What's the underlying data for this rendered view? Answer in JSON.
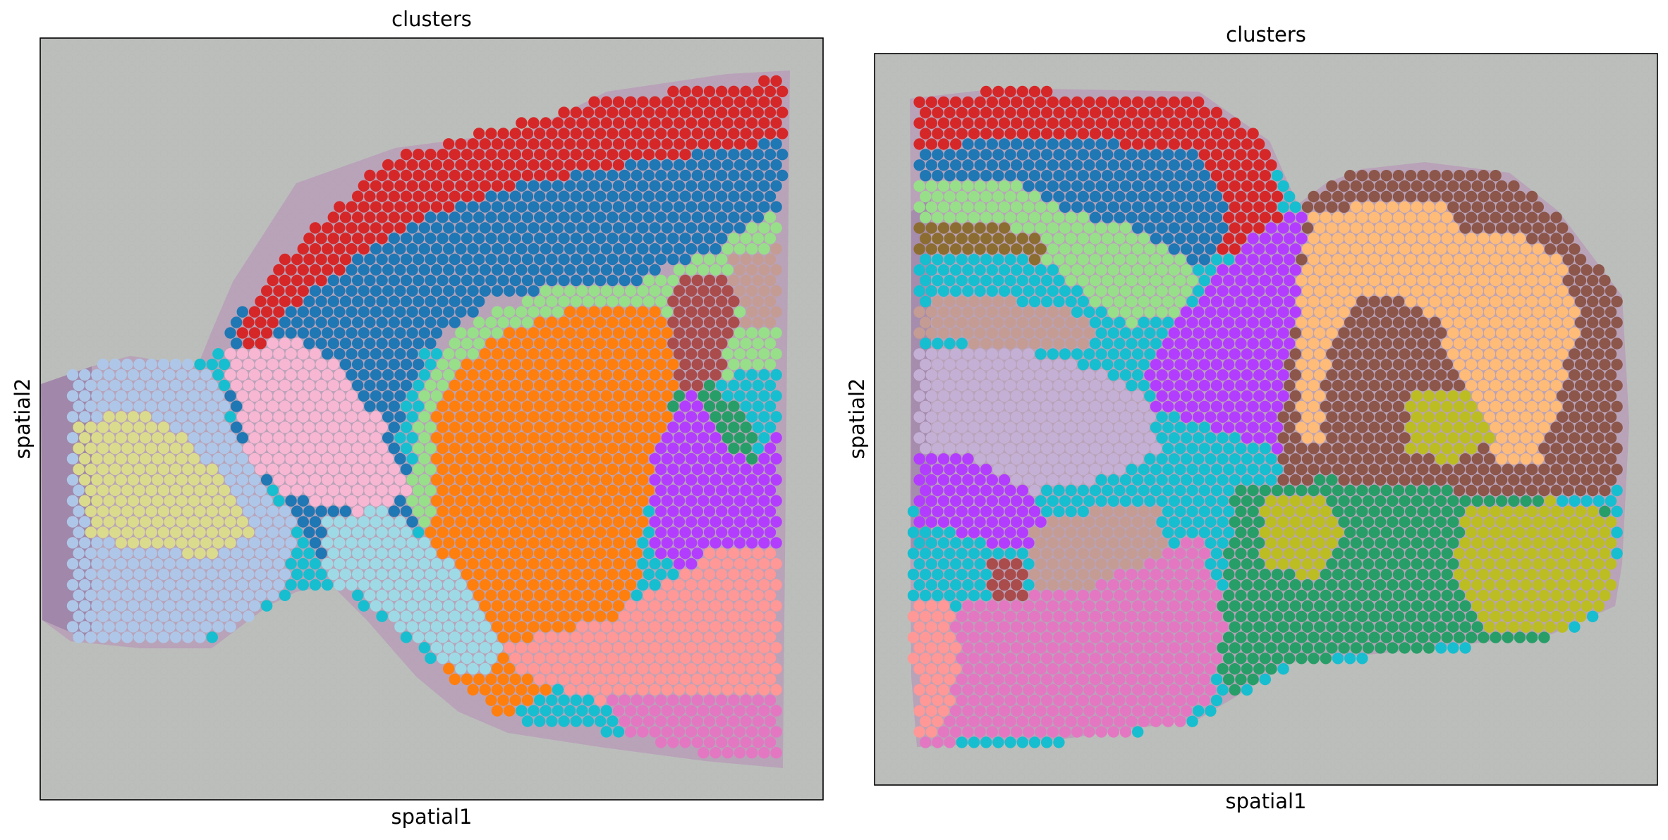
{
  "chart_data": [
    {
      "type": "scatter",
      "title": "clusters",
      "xlabel": "spatial1",
      "ylabel": "spatial2",
      "axes_ticks": "hidden",
      "background": "H&E tissue image (sagittal mouse brain section, left)",
      "series": [
        {
          "color": "#d62728",
          "region": "outer cortical band"
        },
        {
          "color": "#1f77b4",
          "region": "inner cortex"
        },
        {
          "color": "#98df8a",
          "region": "thin boundary band"
        },
        {
          "color": "#ff7f0e",
          "region": "large central region"
        },
        {
          "color": "#aa4c4c",
          "region": "upper right"
        },
        {
          "color": "#c49c94",
          "region": "upper right edge"
        },
        {
          "color": "#b33dff",
          "region": "right middle"
        },
        {
          "color": "#279e68",
          "region": "right middle strands"
        },
        {
          "color": "#ff9896",
          "region": "lower right"
        },
        {
          "color": "#e377c2",
          "region": "bottom right"
        },
        {
          "color": "#f7b6d2",
          "region": "central left"
        },
        {
          "color": "#aec7e8",
          "region": "left lobe"
        },
        {
          "color": "#dbdb8d",
          "region": "left lobe core"
        },
        {
          "color": "#9edae5",
          "region": "lower central"
        },
        {
          "color": "#17becf",
          "region": "scattered"
        }
      ]
    },
    {
      "type": "scatter",
      "title": "clusters",
      "xlabel": "spatial1",
      "ylabel": "spatial2",
      "axes_ticks": "hidden",
      "background": "H&E tissue image (sagittal mouse brain section, right)",
      "series": [
        {
          "color": "#d62728",
          "region": "top band"
        },
        {
          "color": "#1f77b4",
          "region": "top arc"
        },
        {
          "color": "#98df8a",
          "region": "upper left"
        },
        {
          "color": "#8c6d31",
          "region": "upper left stripe"
        },
        {
          "color": "#c49c94",
          "region": "left middle and lower center"
        },
        {
          "color": "#17becf",
          "region": "central streams"
        },
        {
          "color": "#b33dff",
          "region": "central diagonal"
        },
        {
          "color": "#c5b0d5",
          "region": "left middle"
        },
        {
          "color": "#8c564b",
          "region": "cerebellum"
        },
        {
          "color": "#ffbb78",
          "region": "cerebellum folia"
        },
        {
          "color": "#279e68",
          "region": "lower right"
        },
        {
          "color": "#bcbd22",
          "region": "lower right blobs"
        },
        {
          "color": "#e377c2",
          "region": "bottom left"
        },
        {
          "color": "#ff9896",
          "region": "bottom left edge"
        },
        {
          "color": "#aa4c4c",
          "region": "small lower patch"
        }
      ]
    }
  ]
}
